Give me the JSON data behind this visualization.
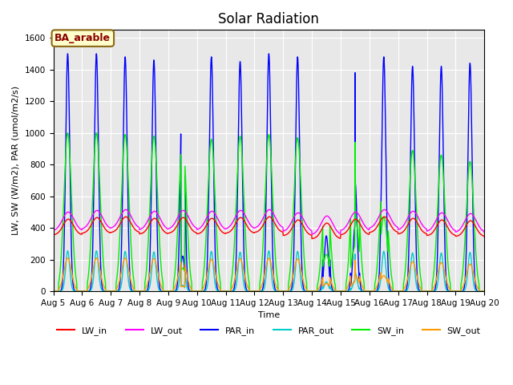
{
  "title": "Solar Radiation",
  "ylabel": "LW, SW (W/m2), PAR (umol/m2/s)",
  "xlabel": "Time",
  "annotation": "BA_arable",
  "annotation_bbox": {
    "facecolor": "#ffffcc",
    "edgecolor": "#8B6914"
  },
  "annotation_color": "#8B0000",
  "ylim": [
    0,
    1650
  ],
  "xlim_days": [
    5,
    20
  ],
  "series": {
    "LW_in": {
      "color": "#ff0000",
      "lw": 1.0
    },
    "LW_out": {
      "color": "#ff00ff",
      "lw": 1.0
    },
    "PAR_in": {
      "color": "#0000ff",
      "lw": 1.0
    },
    "PAR_out": {
      "color": "#00cccc",
      "lw": 1.0
    },
    "SW_in": {
      "color": "#00ee00",
      "lw": 1.0
    },
    "SW_out": {
      "color": "#ff9900",
      "lw": 1.0
    }
  },
  "bg_color": "#e8e8e8",
  "fig_bg": "#ffffff",
  "grid_color": "#ffffff",
  "title_fontsize": 12,
  "label_fontsize": 8,
  "tick_fontsize": 7.5,
  "legend_fontsize": 8
}
